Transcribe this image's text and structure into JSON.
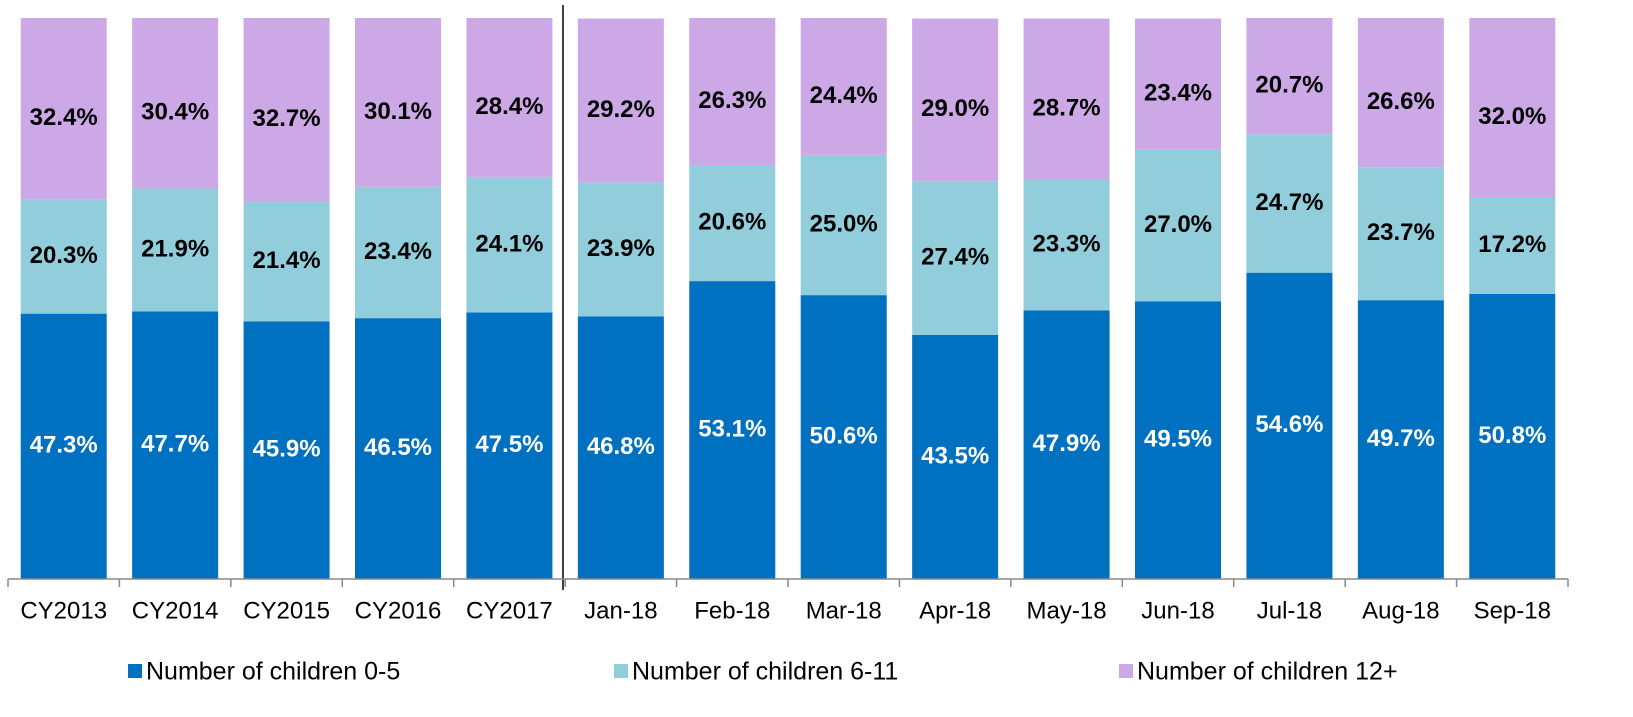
{
  "chart_data": {
    "type": "stacked_bar",
    "categories": [
      "CY2013",
      "CY2014",
      "CY2015",
      "CY2016",
      "CY2017",
      "Jan-18",
      "Feb-18",
      "Mar-18",
      "Apr-18",
      "May-18",
      "Jun-18",
      "Jul-18",
      "Aug-18",
      "Sep-18"
    ],
    "ylim": [
      0,
      100
    ],
    "series": [
      {
        "name": "Number of children 0-5",
        "color": "#0070c0",
        "values": [
          47.3,
          47.7,
          45.9,
          46.5,
          47.5,
          46.8,
          53.1,
          50.6,
          43.5,
          47.9,
          49.5,
          54.6,
          49.7,
          50.8
        ],
        "value_labels": [
          "47.3%",
          "47.7%",
          "45.9%",
          "46.5%",
          "47.5%",
          "46.8%",
          "53.1%",
          "50.6%",
          "43.5%",
          "47.9%",
          "49.5%",
          "54.6%",
          "49.7%",
          "50.8%"
        ]
      },
      {
        "name": "Number of children 6-11",
        "color": "#92cddc",
        "values": [
          20.3,
          21.9,
          21.4,
          23.4,
          24.1,
          23.9,
          20.6,
          25.0,
          27.4,
          23.3,
          27.0,
          24.7,
          23.7,
          17.2
        ],
        "value_labels": [
          "20.3%",
          "21.9%",
          "21.4%",
          "23.4%",
          "24.1%",
          "23.9%",
          "20.6%",
          "25.0%",
          "27.4%",
          "23.3%",
          "27.0%",
          "24.7%",
          "23.7%",
          "17.2%"
        ]
      },
      {
        "name": "Number of children 12+",
        "color": "#cca9e6",
        "values": [
          32.4,
          30.4,
          32.7,
          30.1,
          28.4,
          29.2,
          26.3,
          24.4,
          29.0,
          28.7,
          23.4,
          20.7,
          26.6,
          32.0
        ],
        "value_labels": [
          "32.4%",
          "30.4%",
          "32.7%",
          "30.1%",
          "28.4%",
          "29.2%",
          "26.3%",
          "24.4%",
          "29.0%",
          "28.7%",
          "23.4%",
          "20.7%",
          "26.6%",
          "32.0%"
        ]
      }
    ],
    "legend": "bottom"
  }
}
